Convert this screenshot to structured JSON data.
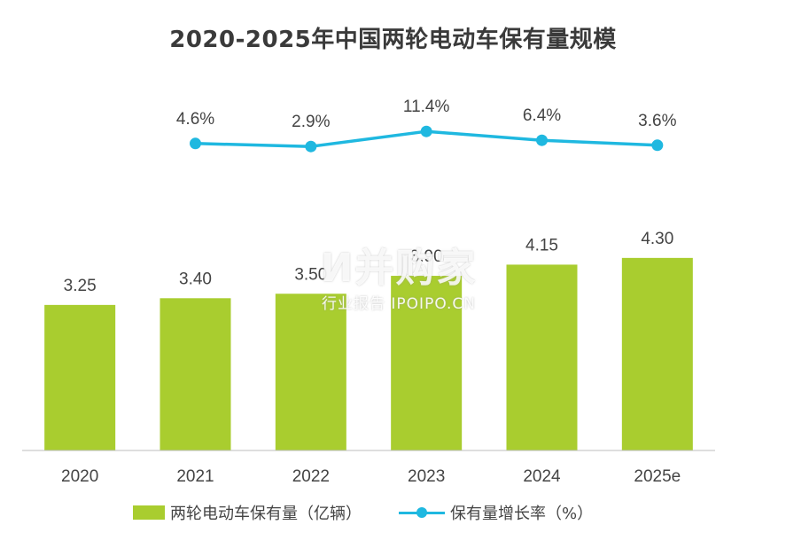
{
  "chart_data": {
    "type": "bar",
    "title": "2020-2025年中国两轮电动车保有量规模",
    "categories": [
      "2020",
      "2021",
      "2022",
      "2023",
      "2024",
      "2025e"
    ],
    "series": [
      {
        "name": "两轮电动车保有量（亿辆）",
        "type": "bar",
        "values": [
          3.25,
          3.4,
          3.5,
          3.9,
          4.15,
          4.3
        ],
        "labels": [
          "3.25",
          "3.40",
          "3.50",
          "3.90",
          "4.15",
          "4.30"
        ],
        "color": "#a9cd2f"
      },
      {
        "name": "保有量增长率（%）",
        "type": "line",
        "values": [
          null,
          4.6,
          2.9,
          11.4,
          6.4,
          3.6
        ],
        "labels": [
          "",
          "4.6%",
          "2.9%",
          "11.4%",
          "6.4%",
          "3.6%"
        ],
        "color": "#1fb8e0"
      }
    ],
    "legend_position": "bottom",
    "grid": false
  },
  "watermark": {
    "main": "И并购家",
    "sub": "行业报告 IPOIPO.CN"
  }
}
